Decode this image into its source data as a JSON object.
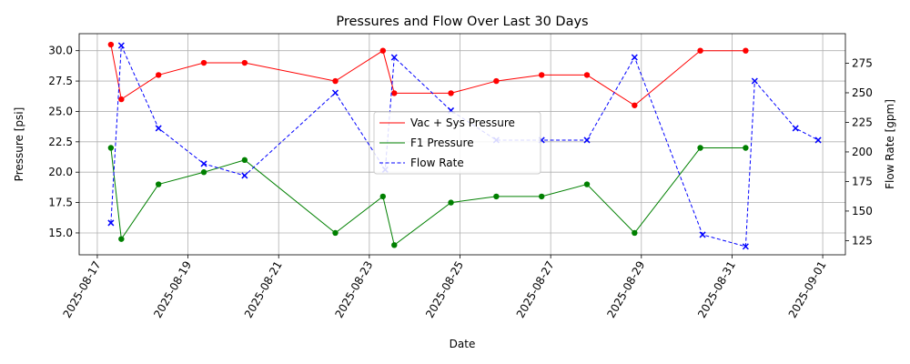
{
  "chart_data": {
    "type": "line",
    "title": "Pressures and Flow Over Last 30 Days",
    "xlabel": "Date",
    "ylabel_left": "Pressure [psi]",
    "ylabel_right": "Flow Rate [gpm]",
    "x_range_days": [
      -0.4,
      16.5
    ],
    "x_date_origin": "2025-08-17",
    "x_ticks": [
      {
        "day": 0,
        "label": "2025-08-17"
      },
      {
        "day": 2,
        "label": "2025-08-19"
      },
      {
        "day": 4,
        "label": "2025-08-21"
      },
      {
        "day": 6,
        "label": "2025-08-23"
      },
      {
        "day": 8,
        "label": "2025-08-25"
      },
      {
        "day": 10,
        "label": "2025-08-27"
      },
      {
        "day": 12,
        "label": "2025-08-29"
      },
      {
        "day": 14,
        "label": "2025-08-31"
      },
      {
        "day": 16,
        "label": "2025-09-01"
      }
    ],
    "ylim_left": [
      13.2,
      31.4
    ],
    "yticks_left": [
      "15.0",
      "17.5",
      "20.0",
      "22.5",
      "25.0",
      "27.5",
      "30.0"
    ],
    "ylim_right": [
      113,
      300
    ],
    "yticks_right": [
      "125",
      "150",
      "175",
      "200",
      "225",
      "250",
      "275"
    ],
    "grid": true,
    "legend_position": "center",
    "series": [
      {
        "name": "Vac + Sys Pressure",
        "axis": "left",
        "color": "#ff0000",
        "marker": "circle",
        "linestyle": "solid",
        "x": [
          0.3,
          0.53,
          1.35,
          2.35,
          3.25,
          5.25,
          6.3,
          6.55,
          7.8,
          8.8,
          9.8,
          10.8,
          11.85,
          13.3,
          14.3
        ],
        "y": [
          30.5,
          26.0,
          28.0,
          29.0,
          29.0,
          27.5,
          30.0,
          26.5,
          26.5,
          27.5,
          28.0,
          28.0,
          25.5,
          30.0,
          30.0
        ]
      },
      {
        "name": "F1 Pressure",
        "axis": "left",
        "color": "#008000",
        "marker": "circle",
        "linestyle": "solid",
        "x": [
          0.3,
          0.53,
          1.35,
          2.35,
          3.25,
          5.25,
          6.3,
          6.55,
          7.8,
          8.8,
          9.8,
          10.8,
          11.85,
          13.3,
          14.3
        ],
        "y": [
          22.0,
          14.5,
          19.0,
          20.0,
          21.0,
          15.0,
          18.0,
          14.0,
          17.5,
          18.0,
          18.0,
          19.0,
          15.0,
          22.0,
          22.0
        ]
      },
      {
        "name": "Flow Rate",
        "axis": "right",
        "color": "#0000ff",
        "marker": "x",
        "linestyle": "dashed",
        "x": [
          0.3,
          0.53,
          1.35,
          2.35,
          3.25,
          5.25,
          6.35,
          6.55,
          7.8,
          8.8,
          9.8,
          10.8,
          11.85,
          13.35,
          14.3,
          14.5,
          15.4,
          15.9
        ],
        "y": [
          140,
          290,
          220,
          190,
          180,
          250,
          185,
          280,
          235,
          210,
          210,
          210,
          280,
          130,
          120,
          260,
          220,
          210
        ]
      }
    ]
  }
}
